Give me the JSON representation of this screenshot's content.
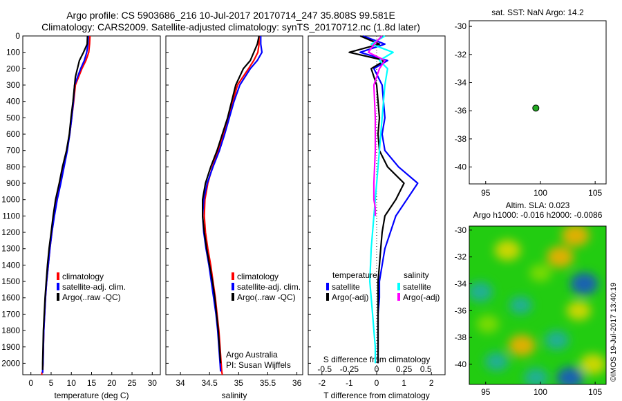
{
  "header": {
    "title_line1": "Argo profile: CS 5903686_216 10-Jul-2017 20170714_247 35.808S 99.581E",
    "title_line2": "Climatology: CARS2009. Satellite-adjusted climatology: synTS_20170712.nc (1.8d later)"
  },
  "footer": {
    "credit": "Argo Australia",
    "pi": "PI: Susan Wijffels",
    "stamp": "©IMOS 19-Jul-2017 13:40:19"
  },
  "colors": {
    "climatology": "#ff0000",
    "satellite": "#0000ff",
    "argo": "#000000",
    "sal_satellite": "#00ffff",
    "sal_argo": "#ff00ff",
    "float_marker": "#22aa22"
  },
  "depth_axis": {
    "ticks": [
      0,
      100,
      200,
      300,
      400,
      500,
      600,
      700,
      800,
      900,
      1000,
      1100,
      1200,
      1300,
      1400,
      1500,
      1600,
      1700,
      1800,
      1900,
      2000
    ],
    "range": [
      0,
      2070
    ]
  },
  "chart_data": [
    {
      "type": "line",
      "name": "temperature",
      "xlabel": "temperature (deg C)",
      "xticks": [
        0,
        5,
        10,
        15,
        20,
        25,
        30
      ],
      "xlim": [
        -2,
        32
      ],
      "legend": [
        "climatology",
        "satellite-adj. clim.",
        "Argo(..raw -QC)"
      ],
      "series": [
        {
          "name": "climatology",
          "color": "#ff0000",
          "x": [
            14.6,
            14.5,
            14.3,
            13.6,
            12.6,
            11.0,
            10.6,
            10.1,
            9.6,
            8.9,
            8.0,
            7.2,
            6.3,
            5.7,
            5.2,
            4.7,
            4.3,
            3.9,
            3.6,
            3.4,
            3.2,
            3.1,
            3.0,
            2.9,
            2.8,
            2.7,
            2.7
          ],
          "y": [
            0,
            50,
            100,
            150,
            200,
            300,
            400,
            500,
            600,
            700,
            800,
            900,
            1000,
            1100,
            1200,
            1300,
            1400,
            1500,
            1600,
            1700,
            1800,
            1900,
            2000,
            2050,
            2055,
            2060,
            2070
          ]
        },
        {
          "name": "satellite-adj. clim.",
          "color": "#0000ff",
          "x": [
            14.2,
            14.1,
            13.8,
            13.2,
            12.3,
            10.8,
            10.5,
            10.1,
            9.6,
            9.0,
            8.2,
            7.4,
            6.5,
            5.8,
            5.2,
            4.7,
            4.3,
            3.9,
            3.6,
            3.4,
            3.2,
            3.1,
            3.0,
            2.9,
            2.9
          ],
          "y": [
            0,
            50,
            100,
            150,
            200,
            300,
            400,
            500,
            600,
            700,
            800,
            900,
            1000,
            1100,
            1200,
            1300,
            1400,
            1500,
            1600,
            1700,
            1800,
            1900,
            2000,
            2040,
            2060
          ]
        },
        {
          "name": "Argo(..raw -QC)",
          "color": "#000000",
          "x": [
            14.0,
            13.9,
            13.0,
            12.0,
            11.0,
            10.4,
            9.9,
            9.5,
            8.8,
            7.8,
            7.0,
            6.1,
            5.5,
            5.0,
            4.5,
            4.1,
            3.8,
            3.5,
            3.3,
            3.1,
            3.0,
            2.9,
            2.9
          ],
          "y": [
            0,
            50,
            100,
            150,
            250,
            400,
            500,
            600,
            700,
            800,
            900,
            1000,
            1100,
            1200,
            1300,
            1400,
            1500,
            1600,
            1700,
            1800,
            1900,
            2000,
            2040
          ]
        }
      ]
    },
    {
      "type": "line",
      "name": "salinity",
      "xlabel": "salinity",
      "xticks": [
        34,
        34.5,
        35,
        35.5,
        36
      ],
      "xlim": [
        33.75,
        36.1
      ],
      "legend": [
        "climatology",
        "satellite-adj. clim.",
        "Argo(..raw -QC)"
      ],
      "series": [
        {
          "name": "climatology",
          "color": "#ff0000",
          "x": [
            35.35,
            35.35,
            35.33,
            35.26,
            35.17,
            34.98,
            34.9,
            34.82,
            34.74,
            34.65,
            34.55,
            34.47,
            34.42,
            34.41,
            34.43,
            34.47,
            34.52,
            34.56,
            34.6,
            34.63,
            34.66,
            34.68,
            34.7,
            34.71,
            34.72
          ],
          "y": [
            0,
            50,
            100,
            150,
            200,
            300,
            400,
            500,
            600,
            700,
            800,
            900,
            1000,
            1100,
            1200,
            1300,
            1400,
            1500,
            1600,
            1700,
            1800,
            1900,
            2000,
            2050,
            2070
          ]
        },
        {
          "name": "satellite-adj. clim.",
          "color": "#0000ff",
          "x": [
            35.38,
            35.38,
            35.4,
            35.32,
            35.2,
            35.02,
            34.92,
            34.84,
            34.76,
            34.67,
            34.56,
            34.46,
            34.4,
            34.38,
            34.4,
            34.44,
            34.49,
            34.53,
            34.57,
            34.61,
            34.64,
            34.66,
            34.68,
            34.69
          ],
          "y": [
            0,
            50,
            100,
            150,
            200,
            300,
            400,
            500,
            600,
            700,
            800,
            900,
            1000,
            1100,
            1200,
            1300,
            1400,
            1500,
            1600,
            1700,
            1800,
            1900,
            2000,
            2050
          ]
        },
        {
          "name": "Argo(..raw -QC)",
          "color": "#000000",
          "x": [
            35.35,
            35.32,
            35.2,
            35.08,
            34.95,
            34.88,
            34.81,
            34.72,
            34.63,
            34.52,
            34.43,
            34.38,
            34.38,
            34.41,
            34.45,
            34.5,
            34.55,
            34.59,
            34.62,
            34.65,
            34.67,
            34.69
          ],
          "y": [
            0,
            50,
            150,
            200,
            300,
            400,
            500,
            600,
            700,
            800,
            900,
            1000,
            1100,
            1200,
            1300,
            1400,
            1500,
            1600,
            1700,
            1800,
            1900,
            2000
          ]
        }
      ]
    },
    {
      "type": "line",
      "name": "difference",
      "xlabel": "T difference from climatology",
      "xlabel_top": "S difference from climatology",
      "xticks": [
        -2,
        -1,
        0,
        1,
        2
      ],
      "xticks_top": [
        "-0.5",
        "-0.25",
        "0",
        "0.25",
        "0.5"
      ],
      "xlim": [
        -2.5,
        2.5
      ],
      "legend_left_title": "temperature",
      "legend_right_title": "salinity",
      "legend": [
        "satellite",
        "Argo(-adj)",
        "satellite",
        "Argo(-adj)"
      ],
      "series": [
        {
          "name": "T satellite",
          "color": "#0000ff",
          "x": [
            -0.5,
            0.3,
            -0.6,
            0.4,
            -0.1,
            0.2,
            0.3,
            0.2,
            0.3,
            0.8,
            1.5,
            1.1,
            0.7,
            0.5,
            0.3,
            0.2,
            0.1,
            0.1,
            0.05,
            0.05,
            0.05,
            0.05
          ],
          "y": [
            0,
            50,
            100,
            150,
            200,
            300,
            500,
            600,
            700,
            800,
            900,
            1000,
            1100,
            1200,
            1300,
            1400,
            1500,
            1600,
            1700,
            1800,
            1900,
            2000
          ]
        },
        {
          "name": "T Argo(-adj)",
          "color": "#000000",
          "x": [
            -0.6,
            0.1,
            -1.0,
            0.3,
            -0.2,
            0.0,
            0.1,
            0.05,
            0.1,
            0.4,
            1.0,
            0.7,
            0.3,
            0.2,
            0.15,
            0.1,
            0.05,
            0.05,
            0.05,
            0.05,
            0.05
          ],
          "y": [
            0,
            50,
            100,
            150,
            200,
            300,
            500,
            600,
            700,
            800,
            900,
            1000,
            1100,
            1200,
            1300,
            1400,
            1500,
            1600,
            1700,
            1800,
            2000
          ]
        },
        {
          "name": "S satellite",
          "color": "#00ffff",
          "x": [
            0.3,
            -0.2,
            0.6,
            0.1,
            0.4,
            0.3,
            0.2,
            0.1,
            0.0,
            -0.1,
            -0.2,
            -0.25,
            -0.2,
            -0.15,
            -0.1,
            -0.05,
            -0.05
          ],
          "y": [
            0,
            50,
            100,
            150,
            200,
            300,
            500,
            700,
            900,
            1100,
            1300,
            1500,
            1600,
            1700,
            1800,
            1900,
            2000
          ]
        },
        {
          "name": "S Argo(-adj)",
          "color": "#ff00ff",
          "x": [
            0.2,
            -0.1,
            -0.3,
            0.3,
            0.1,
            -0.1,
            -0.05,
            -0.05,
            -0.1,
            -0.1,
            -0.05,
            -0.05
          ],
          "y": [
            0,
            50,
            100,
            150,
            200,
            300,
            500,
            700,
            900,
            1000,
            1050,
            1100
          ]
        }
      ]
    },
    {
      "type": "scatter",
      "name": "location-map",
      "title": "sat. SST: NaN Argo: 14.2",
      "xticks": [
        95,
        100,
        105
      ],
      "yticks": [
        -30,
        -32,
        -34,
        -36,
        -38,
        -40
      ],
      "xlim": [
        93.5,
        106
      ],
      "ylim": [
        -41.2,
        -29.6
      ],
      "points": [
        {
          "x": 99.58,
          "y": -35.81
        }
      ]
    },
    {
      "type": "heatmap",
      "name": "sla-map",
      "title_line1": "Altim. SLA: 0.023",
      "title_line2": "Argo h1000: -0.016 h2000: -0.0086",
      "xticks": [
        95,
        100,
        105
      ],
      "yticks": [
        -30,
        -32,
        -34,
        -36,
        -38,
        -40
      ],
      "xlim": [
        93.5,
        106
      ],
      "ylim": [
        -41.5,
        -29.7
      ],
      "colormap": [
        "#1a4fcc",
        "#22aaaa",
        "#00d000",
        "#88dd00",
        "#e8d800",
        "#ffaa00"
      ],
      "blobs": [
        {
          "x": 97.0,
          "y": -31.5,
          "v": 0.8
        },
        {
          "x": 103.2,
          "y": -30.4,
          "v": 1.0
        },
        {
          "x": 101.8,
          "y": -32.0,
          "v": 0.9
        },
        {
          "x": 100.0,
          "y": -33.2,
          "v": 0.3
        },
        {
          "x": 104.0,
          "y": -34.0,
          "v": -1.0
        },
        {
          "x": 94.5,
          "y": -34.6,
          "v": -0.7
        },
        {
          "x": 98.2,
          "y": -35.6,
          "v": -0.4
        },
        {
          "x": 103.5,
          "y": -36.0,
          "v": 0.6
        },
        {
          "x": 95.2,
          "y": -37.0,
          "v": 0.4
        },
        {
          "x": 98.3,
          "y": -38.6,
          "v": 0.9
        },
        {
          "x": 101.5,
          "y": -38.2,
          "v": -0.6
        },
        {
          "x": 96.0,
          "y": -39.8,
          "v": -0.5
        },
        {
          "x": 104.8,
          "y": -40.0,
          "v": 0.8
        },
        {
          "x": 99.6,
          "y": -41.0,
          "v": -0.6
        },
        {
          "x": 102.7,
          "y": -41.0,
          "v": -0.9
        }
      ]
    }
  ]
}
